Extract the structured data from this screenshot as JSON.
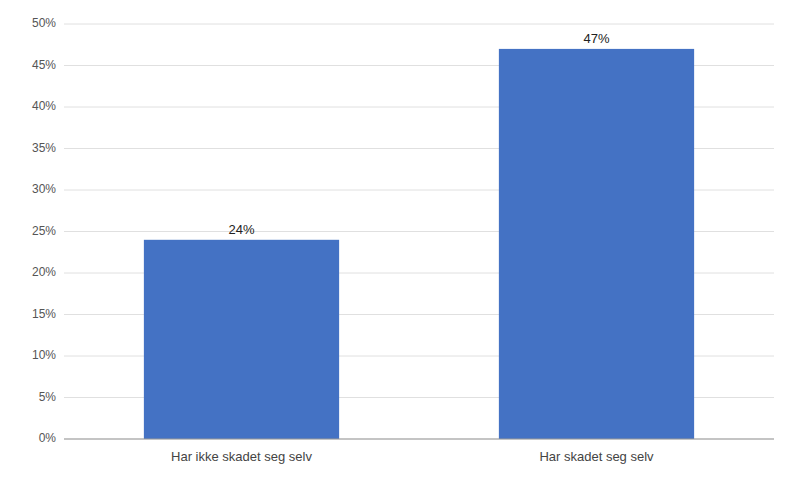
{
  "chart_data": {
    "type": "bar",
    "categories": [
      "Har ikke skadet seg selv",
      "Har skadet seg selv"
    ],
    "values": [
      0.24,
      0.47
    ],
    "value_labels": [
      "24%",
      "47%"
    ],
    "data_labels": true,
    "color": "#4472C4",
    "ylim": [
      0,
      0.5
    ],
    "yticks": [
      {
        "value": 0.0,
        "label": "0%"
      },
      {
        "value": 0.05,
        "label": "5%"
      },
      {
        "value": 0.1,
        "label": "10%"
      },
      {
        "value": 0.15,
        "label": "15%"
      },
      {
        "value": 0.2,
        "label": "20%"
      },
      {
        "value": 0.25,
        "label": "25%"
      },
      {
        "value": 0.3,
        "label": "30%"
      },
      {
        "value": 0.35,
        "label": "35%"
      },
      {
        "value": 0.4,
        "label": "40%"
      },
      {
        "value": 0.45,
        "label": "45%"
      },
      {
        "value": 0.5,
        "label": "50%"
      }
    ],
    "grid": true
  }
}
